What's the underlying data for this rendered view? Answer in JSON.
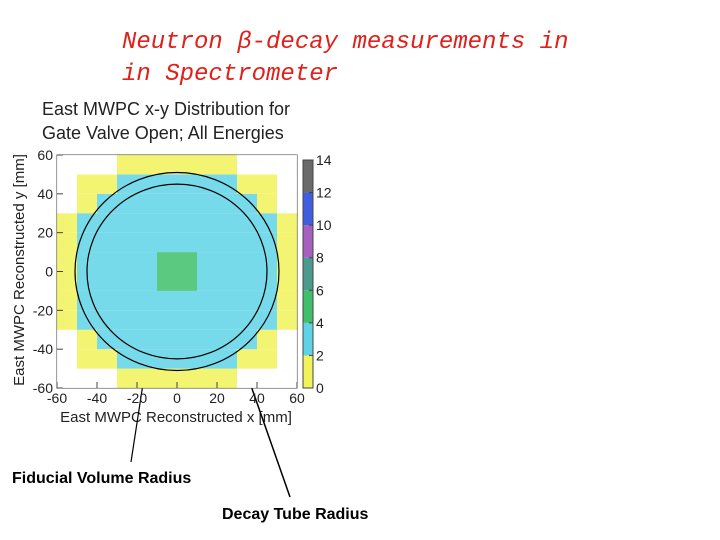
{
  "header": {
    "title_lines": [
      "Neutron β-decay measurements in",
      "in Spectrometer"
    ]
  },
  "chart_data": {
    "type": "heatmap",
    "title_lines": [
      "East MWPC x-y Distribution for",
      "Gate Valve Open; All Energies"
    ],
    "x_label": "East MWPC Reconstructed x [mm]",
    "y_label": "East MWPC Reconstructed y [mm]",
    "xlim": [
      -60,
      60
    ],
    "ylim": [
      -60,
      60
    ],
    "xticks": [
      -60,
      -40,
      -20,
      0,
      20,
      40,
      60
    ],
    "yticks": [
      -60,
      -40,
      -20,
      0,
      20,
      40,
      60
    ],
    "x_bins": [
      -60,
      -50,
      -40,
      -30,
      -20,
      -10,
      0,
      10,
      20,
      30,
      40,
      50,
      60
    ],
    "y_bins": [
      -60,
      -50,
      -40,
      -30,
      -20,
      -10,
      0,
      10,
      20,
      30,
      40,
      50,
      60
    ],
    "z": [
      [
        0,
        0,
        0,
        1,
        1,
        1,
        1,
        1,
        1,
        0,
        0,
        0
      ],
      [
        0,
        1,
        1,
        2,
        2,
        2,
        2,
        2,
        2,
        1,
        1,
        0
      ],
      [
        0,
        1,
        2,
        3,
        3,
        3,
        3,
        3,
        3,
        2,
        1,
        0
      ],
      [
        1,
        2,
        3,
        3,
        3,
        3,
        3,
        3,
        3,
        3,
        2,
        1
      ],
      [
        1,
        2,
        3,
        3,
        3,
        3,
        3,
        3,
        3,
        3,
        2,
        1
      ],
      [
        1,
        2,
        3,
        3,
        3,
        4,
        4,
        3,
        3,
        3,
        2,
        1
      ],
      [
        1,
        2,
        3,
        3,
        3,
        4,
        4,
        3,
        3,
        3,
        2,
        1
      ],
      [
        1,
        2,
        3,
        3,
        3,
        3,
        3,
        3,
        3,
        3,
        2,
        1
      ],
      [
        1,
        2,
        3,
        3,
        3,
        3,
        3,
        3,
        3,
        3,
        2,
        1
      ],
      [
        0,
        1,
        2,
        3,
        3,
        3,
        3,
        3,
        3,
        2,
        1,
        0
      ],
      [
        0,
        1,
        1,
        2,
        2,
        2,
        2,
        2,
        2,
        1,
        1,
        0
      ],
      [
        0,
        0,
        0,
        1,
        1,
        1,
        1,
        1,
        1,
        0,
        0,
        0
      ]
    ],
    "zlim": [
      0,
      14
    ],
    "zticks": [
      0,
      2,
      4,
      6,
      8,
      10,
      12,
      14
    ],
    "zcolors": [
      "#f2f25a",
      "#5fd3e6",
      "#3fbf6a",
      "#4b9a8e",
      "#a75fc0",
      "#3f5fe0",
      "#6a6a6a"
    ],
    "circles": [
      {
        "label": "Fiducial Volume Radius",
        "radius": 45
      },
      {
        "label": "Decay Tube Radius",
        "radius": 51
      }
    ]
  }
}
